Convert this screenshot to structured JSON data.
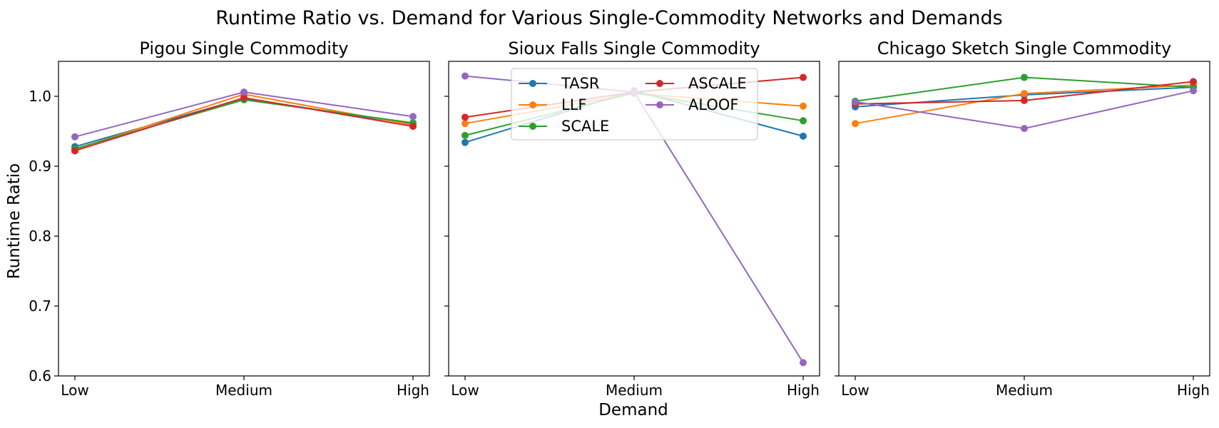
{
  "chart_data": {
    "type": "line",
    "title": "Runtime Ratio vs. Demand for Various Single-Commodity Networks and Demands",
    "xlabel": "Demand",
    "ylabel": "Runtime Ratio",
    "categories": [
      "Low",
      "Medium",
      "High"
    ],
    "ylim": [
      0.6,
      1.05
    ],
    "yticks": [
      0.6,
      0.7,
      0.8,
      0.9,
      1.0
    ],
    "ytick_labels": [
      "0.6",
      "0.7",
      "0.8",
      "0.9",
      "1.0"
    ],
    "grid": false,
    "legend": {
      "location": "upper center",
      "panel": 1,
      "columns": 2
    },
    "series_colors": {
      "TASR": "#1f77b4",
      "LLF": "#ff7f0e",
      "SCALE": "#2ca02c",
      "ASCALE": "#d62728",
      "ALOOF": "#9467bd"
    },
    "panels": [
      {
        "title": "Pigou Single Commodity",
        "series": [
          {
            "name": "TASR",
            "values": [
              0.928,
              0.997,
              0.96
            ]
          },
          {
            "name": "LLF",
            "values": [
              0.924,
              1.003,
              0.959
            ]
          },
          {
            "name": "SCALE",
            "values": [
              0.925,
              0.995,
              0.962
            ]
          },
          {
            "name": "ASCALE",
            "values": [
              0.922,
              0.998,
              0.957
            ]
          },
          {
            "name": "ALOOF",
            "values": [
              0.942,
              1.006,
              0.971
            ]
          }
        ]
      },
      {
        "title": "Sioux Falls Single Commodity",
        "series": [
          {
            "name": "TASR",
            "values": [
              0.934,
              1.008,
              0.943
            ]
          },
          {
            "name": "LLF",
            "values": [
              0.961,
              1.004,
              0.986
            ]
          },
          {
            "name": "SCALE",
            "values": [
              0.944,
              1.005,
              0.965
            ]
          },
          {
            "name": "ASCALE",
            "values": [
              0.97,
              1.006,
              1.027
            ]
          },
          {
            "name": "ALOOF",
            "values": [
              1.029,
              1.006,
              0.619
            ]
          }
        ]
      },
      {
        "title": "Chicago Sketch Single Commodity",
        "series": [
          {
            "name": "TASR",
            "values": [
              0.985,
              1.002,
              1.013
            ]
          },
          {
            "name": "LLF",
            "values": [
              0.961,
              1.004,
              1.016
            ]
          },
          {
            "name": "SCALE",
            "values": [
              0.993,
              1.027,
              1.013
            ]
          },
          {
            "name": "ASCALE",
            "values": [
              0.989,
              0.994,
              1.021
            ]
          },
          {
            "name": "ALOOF",
            "values": [
              0.992,
              0.954,
              1.008
            ]
          }
        ]
      }
    ]
  }
}
